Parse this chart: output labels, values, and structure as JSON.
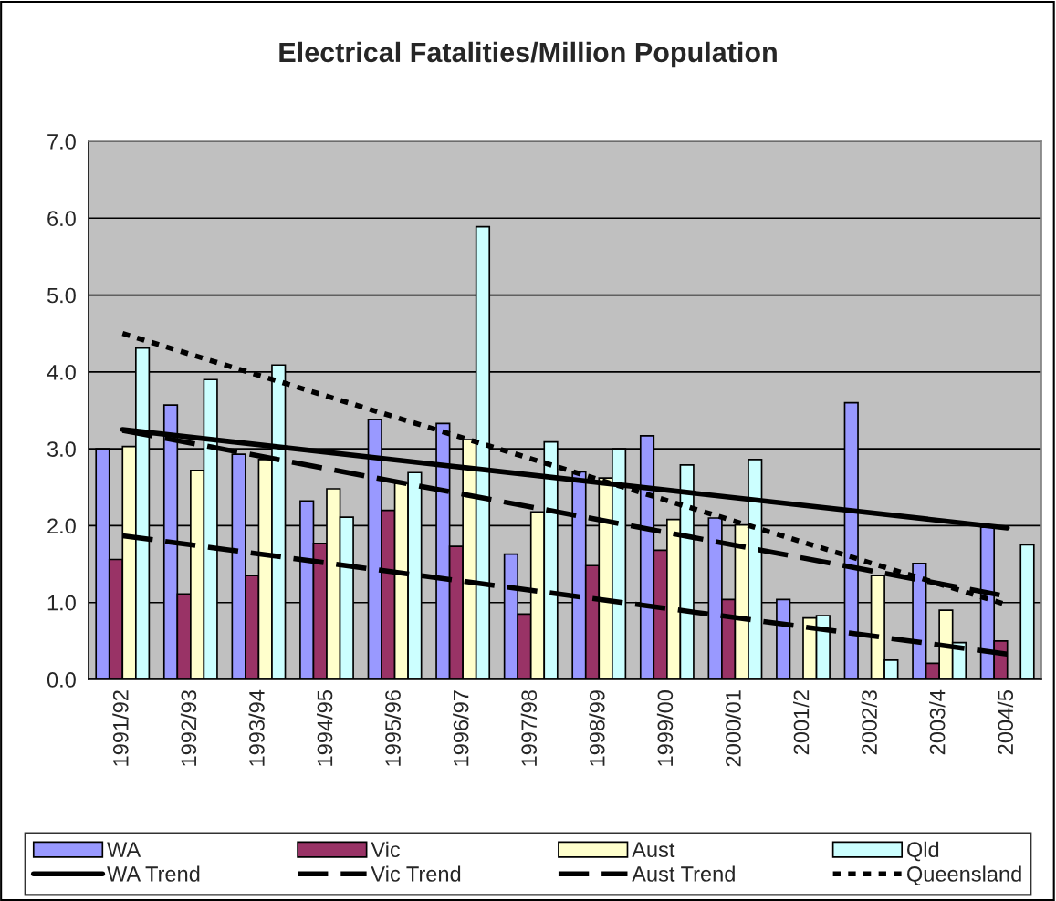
{
  "chart_data": {
    "type": "bar",
    "title": "Electrical Fatalities/Million Population",
    "categories": [
      "1991/92",
      "1992/93",
      "1993/94",
      "1994/95",
      "1995/96",
      "1996/97",
      "1997/98",
      "1998/99",
      "1999/00",
      "2000/01",
      "2001/2",
      "2002/3",
      "2003/4",
      "2004/5"
    ],
    "series": [
      {
        "name": "WA",
        "color": "#9999ff",
        "values": [
          3.0,
          3.57,
          2.93,
          2.32,
          3.38,
          3.33,
          1.63,
          2.7,
          3.17,
          2.1,
          1.04,
          3.6,
          1.51,
          1.98
        ]
      },
      {
        "name": "Vic",
        "color": "#993366",
        "values": [
          1.56,
          1.11,
          1.35,
          1.77,
          2.2,
          1.73,
          0.85,
          1.48,
          1.68,
          1.04,
          null,
          null,
          0.21,
          0.5
        ]
      },
      {
        "name": "Aust",
        "color": "#ffffcc",
        "values": [
          3.03,
          2.72,
          2.86,
          2.48,
          2.55,
          3.12,
          2.18,
          2.62,
          2.08,
          2.01,
          0.8,
          1.35,
          0.9,
          null
        ]
      },
      {
        "name": "Qld",
        "color": "#ccffff",
        "values": [
          4.31,
          3.9,
          4.09,
          2.11,
          2.69,
          5.89,
          3.09,
          3.0,
          2.79,
          2.86,
          0.83,
          0.25,
          0.48,
          1.75
        ]
      },
      {
        "name": "WA Trend",
        "type": "line",
        "line_style": "solid",
        "color": "#000000",
        "x": [
          "1991/92",
          "2004/5"
        ],
        "values": [
          3.25,
          1.97
        ]
      },
      {
        "name": "Vic Trend",
        "type": "line",
        "line_style": "dashed",
        "color": "#000000",
        "x": [
          "1991/92",
          "2004/5"
        ],
        "values": [
          1.87,
          0.33
        ]
      },
      {
        "name": "Aust Trend",
        "type": "line",
        "line_style": "dashed",
        "color": "#000000",
        "x": [
          "1991/92",
          "2004/5"
        ],
        "values": [
          3.24,
          1.08
        ]
      },
      {
        "name": "Queensland",
        "type": "line",
        "line_style": "dotted",
        "color": "#000000",
        "x": [
          "1991/92",
          "2004/5"
        ],
        "values": [
          4.5,
          0.97
        ]
      }
    ],
    "ylim": [
      0,
      7
    ],
    "yticks": [
      {
        "value": 0,
        "label": "0.0"
      },
      {
        "value": 1,
        "label": "1.0"
      },
      {
        "value": 2,
        "label": "2.0"
      },
      {
        "value": 3,
        "label": "3.0"
      },
      {
        "value": 4,
        "label": "4.0"
      },
      {
        "value": 5,
        "label": "5.0"
      },
      {
        "value": 6,
        "label": "6.0"
      },
      {
        "value": 7,
        "label": "7.0"
      }
    ],
    "grid": "y",
    "legend": "bottom",
    "marker": "none"
  }
}
